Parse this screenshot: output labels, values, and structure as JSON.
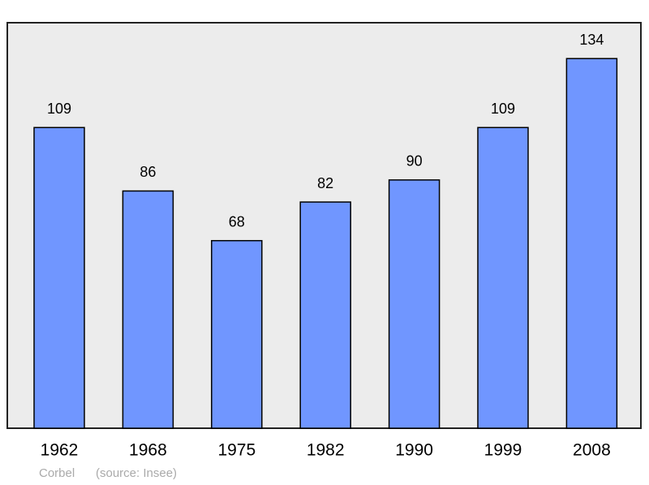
{
  "chart_data": {
    "type": "bar",
    "categories": [
      "1962",
      "1968",
      "1975",
      "1982",
      "1990",
      "1999",
      "2008"
    ],
    "values": [
      109,
      86,
      68,
      82,
      90,
      109,
      134
    ],
    "color": "#7096ff",
    "ylim": [
      0,
      147
    ],
    "credit": "Corbel",
    "source": "(source: Insee)"
  }
}
